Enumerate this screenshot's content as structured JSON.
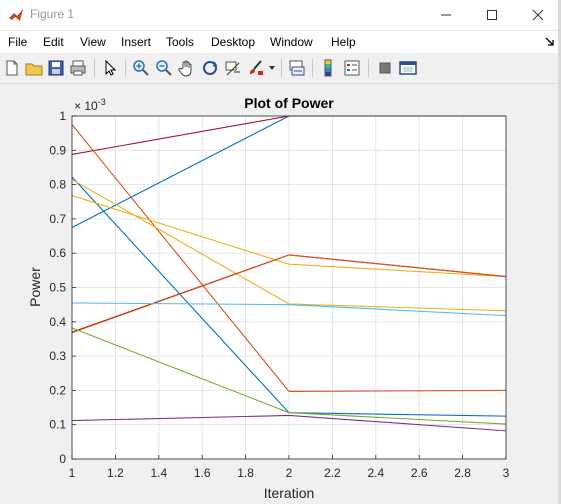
{
  "window": {
    "title": "Figure 1",
    "minimize_icon": "minimize-icon",
    "maximize_icon": "maximize-icon",
    "close_icon": "close-icon"
  },
  "menu": {
    "items": [
      "File",
      "Edit",
      "View",
      "Insert",
      "Tools",
      "Desktop",
      "Window",
      "Help"
    ],
    "dock_icon": "dock-arrow-icon"
  },
  "toolbar": {
    "icons": [
      "new-figure-icon",
      "open-file-icon",
      "save-icon",
      "print-icon",
      "select-arrow-icon",
      "zoom-in-icon",
      "zoom-out-icon",
      "pan-hand-icon",
      "rotate-3d-icon",
      "data-cursor-icon",
      "brush-icon",
      "link-plot-icon",
      "colorbar-icon",
      "legend-icon",
      "hide-plot-tools-icon",
      "show-plot-tools-icon"
    ]
  },
  "chart_data": {
    "type": "line",
    "title": "Plot of Power",
    "xlabel": "Iteration",
    "ylabel": "Power",
    "exponent_label": "× 10^-3",
    "xlim": [
      1,
      3
    ],
    "ylim": [
      0,
      1
    ],
    "xticks": [
      "1",
      "1.2",
      "1.4",
      "1.6",
      "1.8",
      "2",
      "2.2",
      "2.4",
      "2.6",
      "2.8",
      "3"
    ],
    "yticks": [
      "0",
      "0.1",
      "0.2",
      "0.3",
      "0.4",
      "0.5",
      "0.6",
      "0.7",
      "0.8",
      "0.9",
      "1"
    ],
    "grid": true,
    "x": [
      1,
      2,
      3
    ],
    "series": [
      {
        "color": "#a2142f",
        "values": [
          0.888,
          1.0,
          1.0
        ]
      },
      {
        "color": "#d95319",
        "values": [
          0.975,
          0.197,
          0.2
        ]
      },
      {
        "color": "#0072bd",
        "values": [
          0.675,
          1.0,
          1.0
        ]
      },
      {
        "color": "#0072bd",
        "values": [
          0.822,
          0.135,
          0.125
        ]
      },
      {
        "color": "#edb120",
        "values": [
          0.815,
          0.452,
          0.432
        ]
      },
      {
        "color": "#edb120",
        "values": [
          0.768,
          0.568,
          0.532
        ]
      },
      {
        "color": "#a2142f",
        "values": [
          0.37,
          0.595,
          0.532
        ]
      },
      {
        "color": "#d95319",
        "values": [
          0.368,
          0.595,
          0.532
        ]
      },
      {
        "color": "#4dbeee",
        "values": [
          0.455,
          0.45,
          0.418
        ]
      },
      {
        "color": "#77ac30",
        "values": [
          0.382,
          0.135,
          0.102
        ]
      },
      {
        "color": "#7e2f8e",
        "values": [
          0.112,
          0.127,
          0.082
        ]
      }
    ]
  }
}
